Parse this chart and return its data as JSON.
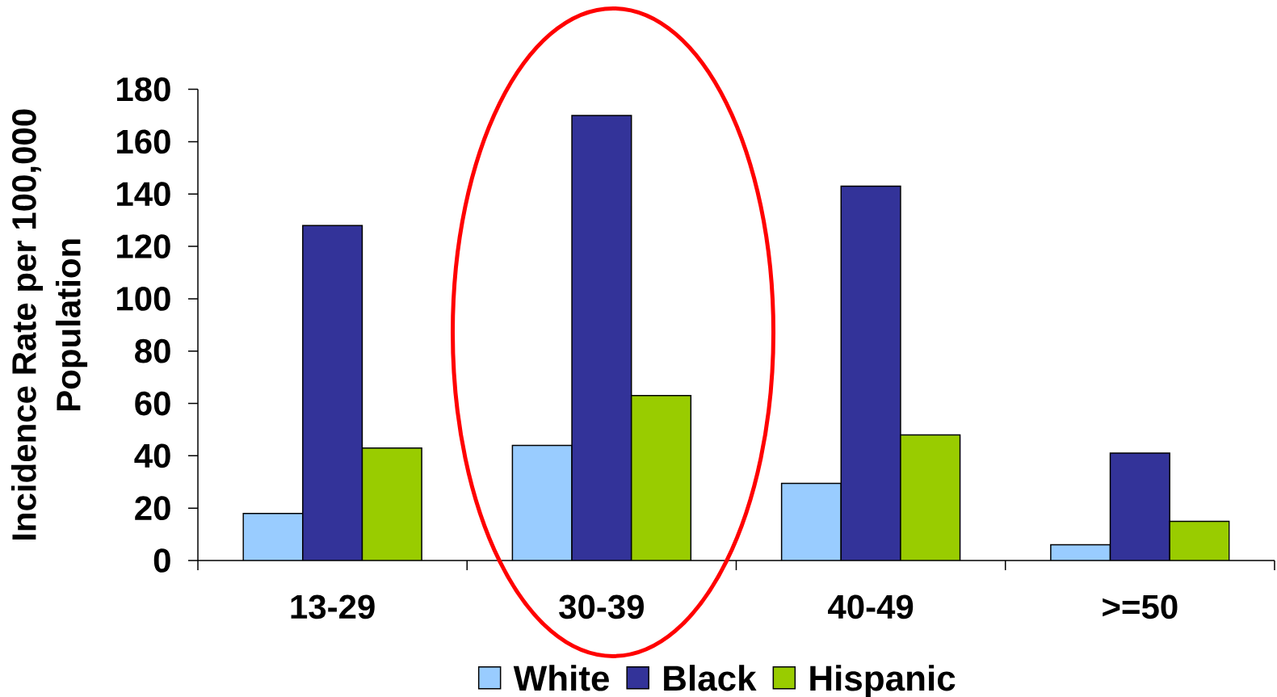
{
  "chart_data": {
    "type": "bar",
    "ylabel": "Incidence Rate per 100,000 Population",
    "categories": [
      "13-29",
      "30-39",
      "40-49",
      ">=50"
    ],
    "series": [
      {
        "name": "White",
        "color": "#99ccff",
        "values": [
          18,
          44,
          29.5,
          6
        ]
      },
      {
        "name": "Black",
        "color": "#333399",
        "values": [
          128,
          170,
          143,
          41
        ]
      },
      {
        "name": "Hispanic",
        "color": "#99cc00",
        "values": [
          43,
          63,
          48,
          15
        ]
      }
    ],
    "ylim": [
      0,
      180
    ],
    "yticks": [
      0,
      20,
      40,
      60,
      80,
      100,
      120,
      140,
      160,
      180
    ],
    "grid": false,
    "legend": "bottom"
  }
}
